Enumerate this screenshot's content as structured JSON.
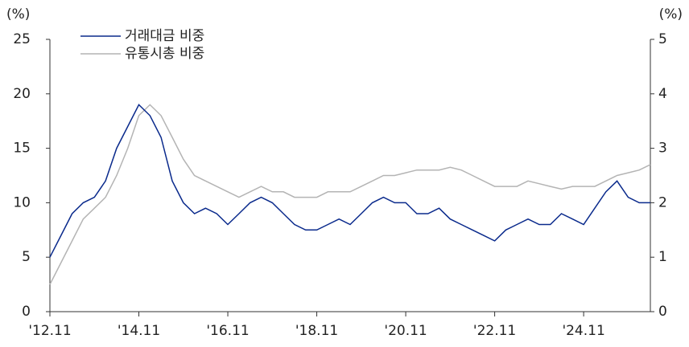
{
  "chart_data": {
    "type": "line",
    "ylabel": "(%)",
    "y2label": "(%)",
    "x": [
      "2012-11",
      "2013-02",
      "2013-05",
      "2013-08",
      "2013-11",
      "2014-02",
      "2014-05",
      "2014-08",
      "2014-11",
      "2015-02",
      "2015-05",
      "2015-08",
      "2015-11",
      "2016-02",
      "2016-05",
      "2016-08",
      "2016-11",
      "2017-02",
      "2017-05",
      "2017-08",
      "2017-11",
      "2018-02",
      "2018-05",
      "2018-08",
      "2018-11",
      "2019-02",
      "2019-05",
      "2019-08",
      "2019-11",
      "2020-02",
      "2020-05",
      "2020-08",
      "2020-11",
      "2021-02",
      "2021-05",
      "2021-08",
      "2021-11",
      "2022-02",
      "2022-05",
      "2022-08",
      "2022-11",
      "2023-02",
      "2023-05",
      "2023-08",
      "2023-11",
      "2024-02",
      "2024-05",
      "2024-08",
      "2024-11",
      "2025-02",
      "2025-05",
      "2025-08",
      "2025-11",
      "2026-02",
      "2026-05"
    ],
    "series": [
      {
        "name": "거래대금 비중",
        "color": "#0a2a8c",
        "axis": "y",
        "values": [
          5,
          7,
          9,
          10,
          10.5,
          12,
          15,
          17,
          19,
          18,
          16,
          12,
          10,
          9,
          9.5,
          9,
          8,
          9,
          10,
          10.5,
          10,
          9,
          8,
          7.5,
          7.5,
          8,
          8.5,
          8,
          9,
          10,
          10.5,
          10,
          10,
          9,
          9,
          9.5,
          8.5,
          8,
          7.5,
          7,
          6.5,
          7.5,
          8,
          8.5,
          8,
          8,
          9,
          8.5,
          8,
          9.5,
          11,
          12,
          10.5,
          10,
          10
        ]
      },
      {
        "name": "유통시총 비중",
        "color": "#b4b4b4",
        "axis": "y2",
        "values": [
          0.5,
          0.9,
          1.3,
          1.7,
          1.9,
          2.1,
          2.5,
          3.0,
          3.6,
          3.8,
          3.6,
          3.2,
          2.8,
          2.5,
          2.4,
          2.3,
          2.2,
          2.1,
          2.2,
          2.3,
          2.2,
          2.2,
          2.1,
          2.1,
          2.1,
          2.2,
          2.2,
          2.2,
          2.3,
          2.4,
          2.5,
          2.5,
          2.55,
          2.6,
          2.6,
          2.6,
          2.65,
          2.6,
          2.5,
          2.4,
          2.3,
          2.3,
          2.3,
          2.4,
          2.35,
          2.3,
          2.25,
          2.3,
          2.3,
          2.3,
          2.4,
          2.5,
          2.55,
          2.6,
          2.7
        ]
      }
    ],
    "xlim": [
      "2012-11",
      "2026-05"
    ],
    "xticks": [
      {
        "value": "2012-11",
        "label": "'12.11"
      },
      {
        "value": "2014-11",
        "label": "'14.11"
      },
      {
        "value": "2016-11",
        "label": "'16.11"
      },
      {
        "value": "2018-11",
        "label": "'18.11"
      },
      {
        "value": "2020-11",
        "label": "'20.11"
      },
      {
        "value": "2022-11",
        "label": "'22.11"
      },
      {
        "value": "2024-11",
        "label": "'24.11"
      }
    ],
    "ylim": [
      0,
      25
    ],
    "yticks": [
      0,
      5,
      10,
      15,
      20,
      25
    ],
    "y2lim": [
      0,
      5
    ],
    "y2ticks": [
      0,
      1,
      2,
      3,
      4,
      5
    ],
    "legend": "upper left"
  }
}
